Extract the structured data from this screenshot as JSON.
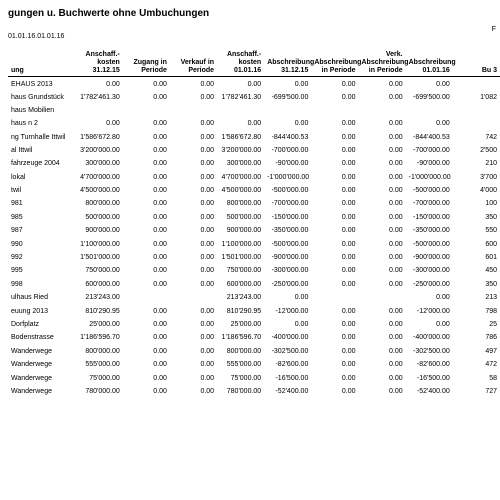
{
  "title": "gungen u. Buchwerte ohne Umbuchungen",
  "subdate": "01.01.16.01.01.16",
  "topright": "F",
  "columns": [
    "Anschaff.-kosten 31.12.15",
    "Zugang in Periode",
    "Verkauf in Periode",
    "Anschaff.-kosten 01.01.16",
    "Abschreibung 31.12.15",
    "Abschreibung in Periode",
    "Verk. Abschreibung in Periode",
    "Abschreibung 01.01.16",
    "Bu 3"
  ],
  "desc_header": "ung",
  "rows": [
    {
      "label": "EHAUS 2013",
      "v": [
        "0.00",
        "0.00",
        "0.00",
        "0.00",
        "0.00",
        "0.00",
        "0.00",
        "0.00",
        ""
      ]
    },
    {
      "label": "haus Grundstück",
      "v": [
        "1'782'461.30",
        "0.00",
        "0.00",
        "1'782'461.30",
        "-699'500.00",
        "0.00",
        "0.00",
        "-699'500.00",
        "1'082"
      ]
    },
    {
      "label": "haus Mobilien",
      "v": [
        "",
        "",
        "",
        "",
        "",
        "",
        "",
        "",
        ""
      ]
    },
    {
      "label": "haus n 2",
      "v": [
        "0.00",
        "0.00",
        "0.00",
        "0.00",
        "0.00",
        "0.00",
        "0.00",
        "0.00",
        ""
      ]
    },
    {
      "label": "ng Turnhalle Ittwil",
      "v": [
        "1'586'672.80",
        "0.00",
        "0.00",
        "1'586'672.80",
        "-844'400.53",
        "0.00",
        "0.00",
        "-844'400.53",
        "742"
      ]
    },
    {
      "label": "al Ittwil",
      "v": [
        "3'200'000.00",
        "0.00",
        "0.00",
        "3'200'000.00",
        "-700'000.00",
        "0.00",
        "0.00",
        "-700'000.00",
        "2'500"
      ]
    },
    {
      "label": "fahrzeuge 2004",
      "v": [
        "300'000.00",
        "0.00",
        "0.00",
        "300'000.00",
        "-90'000.00",
        "0.00",
        "0.00",
        "-90'000.00",
        "210"
      ]
    },
    {
      "label": "lokal",
      "v": [
        "4'700'000.00",
        "0.00",
        "0.00",
        "4'700'000.00",
        "-1'000'000.00",
        "0.00",
        "0.00",
        "-1'000'000.00",
        "3'700"
      ]
    },
    {
      "label": "twil",
      "v": [
        "4'500'000.00",
        "0.00",
        "0.00",
        "4'500'000.00",
        "-500'000.00",
        "0.00",
        "0.00",
        "-500'000.00",
        "4'000"
      ]
    },
    {
      "label": "981",
      "v": [
        "800'000.00",
        "0.00",
        "0.00",
        "800'000.00",
        "-700'000.00",
        "0.00",
        "0.00",
        "-700'000.00",
        "100"
      ]
    },
    {
      "label": "985",
      "v": [
        "500'000.00",
        "0.00",
        "0.00",
        "500'000.00",
        "-150'000.00",
        "0.00",
        "0.00",
        "-150'000.00",
        "350"
      ]
    },
    {
      "label": "987",
      "v": [
        "900'000.00",
        "0.00",
        "0.00",
        "900'000.00",
        "-350'000.00",
        "0.00",
        "0.00",
        "-350'000.00",
        "550"
      ]
    },
    {
      "label": "990",
      "v": [
        "1'100'000.00",
        "0.00",
        "0.00",
        "1'100'000.00",
        "-500'000.00",
        "0.00",
        "0.00",
        "-500'000.00",
        "600"
      ]
    },
    {
      "label": "992",
      "v": [
        "1'501'000.00",
        "0.00",
        "0.00",
        "1'501'000.00",
        "-900'000.00",
        "0.00",
        "0.00",
        "-900'000.00",
        "601"
      ]
    },
    {
      "label": "995",
      "v": [
        "750'000.00",
        "0.00",
        "0.00",
        "750'000.00",
        "-300'000.00",
        "0.00",
        "0.00",
        "-300'000.00",
        "450"
      ]
    },
    {
      "label": "998",
      "v": [
        "600'000.00",
        "0.00",
        "0.00",
        "600'000.00",
        "-250'000.00",
        "0.00",
        "0.00",
        "-250'000.00",
        "350"
      ]
    },
    {
      "label": "ulhaus Ried",
      "v": [
        "213'243.00",
        "",
        "",
        "213'243.00",
        "0.00",
        "",
        "",
        "0.00",
        "213"
      ]
    },
    {
      "label": "euung 2013",
      "v": [
        "810'290.95",
        "0.00",
        "0.00",
        "810'290.95",
        "-12'000.00",
        "0.00",
        "0.00",
        "-12'000.00",
        "798"
      ]
    },
    {
      "label": "Dorfplatz",
      "v": [
        "25'000.00",
        "0.00",
        "0.00",
        "25'000.00",
        "0.00",
        "0.00",
        "0.00",
        "0.00",
        "25"
      ]
    },
    {
      "label": "Bodenstrasse",
      "v": [
        "1'186'596.70",
        "0.00",
        "0.00",
        "1'186'596.70",
        "-400'000.00",
        "0.00",
        "0.00",
        "-400'000.00",
        "786"
      ]
    },
    {
      "label": "Wanderwege",
      "v": [
        "800'000.00",
        "0.00",
        "0.00",
        "800'000.00",
        "-302'500.00",
        "0.00",
        "0.00",
        "-302'500.00",
        "497"
      ]
    },
    {
      "label": "Wanderwege",
      "v": [
        "555'000.00",
        "0.00",
        "0.00",
        "555'000.00",
        "-82'600.00",
        "0.00",
        "0.00",
        "-82'600.00",
        "472"
      ]
    },
    {
      "label": "Wanderwege",
      "v": [
        "75'000.00",
        "0.00",
        "0.00",
        "75'000.00",
        "-16'500.00",
        "0.00",
        "0.00",
        "-16'500.00",
        "58"
      ]
    },
    {
      "label": "Wanderwege",
      "v": [
        "780'000.00",
        "0.00",
        "0.00",
        "780'000.00",
        "-52'400.00",
        "0.00",
        "0.00",
        "-52'400.00",
        "727"
      ]
    }
  ]
}
